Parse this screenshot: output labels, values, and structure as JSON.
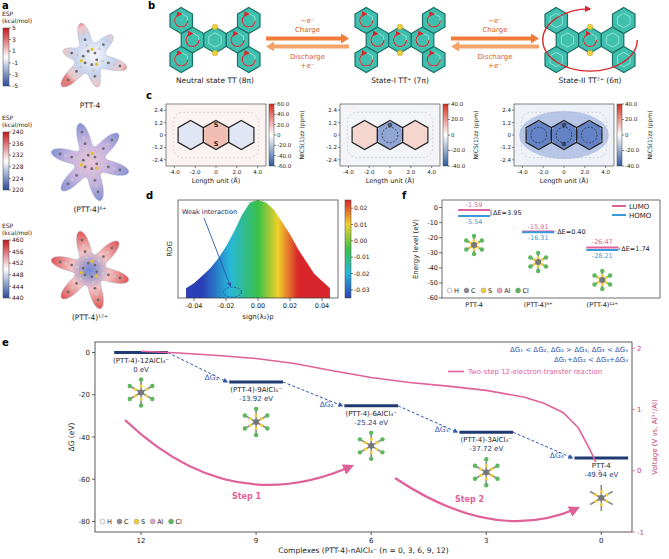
{
  "figure": {
    "panel_letters": [
      "a",
      "b",
      "c",
      "d",
      "e",
      "f"
    ],
    "atom_legend": [
      "H",
      "C",
      "S",
      "Al",
      "Cl"
    ],
    "panel_a": {
      "maps": [
        {
          "title": "ESP (kcal/mol)",
          "label": "PTT-4",
          "range": [
            -5,
            5
          ],
          "ticks": [
            5,
            3,
            1,
            -1,
            -3,
            -5
          ]
        },
        {
          "title": "ESP (kcal/mol)",
          "label": "(PTT-4)⁶⁺",
          "range": [
            220,
            240
          ],
          "ticks": [
            240,
            236,
            232,
            228,
            224,
            220
          ]
        },
        {
          "title": "ESP (kcal/mol)",
          "label": "(PTT-4)¹²⁺",
          "range": [
            440,
            460
          ],
          "ticks": [
            460,
            456,
            452,
            448,
            444,
            440
          ]
        }
      ]
    },
    "panel_b": {
      "states": [
        "Neutral state TT (8π)",
        "State-I TT⁺ (7π)",
        "State-II TT²⁺ (6π)"
      ],
      "arrows": [
        {
          "above": [
            "−e⁻",
            "Charge"
          ],
          "below": [
            "Discharge",
            "+e⁻"
          ]
        },
        {
          "above": [
            "−e⁻",
            "Charge"
          ],
          "below": [
            "Discharge",
            "+e⁻"
          ]
        }
      ]
    },
    "panel_c": {
      "x_label": "Length unit (Å)",
      "colorbar_title": "NICS(1)zz (ppm)",
      "xlim": [
        -4.8,
        4.8
      ],
      "ylim": [
        -3,
        3
      ],
      "xticks": [
        {
          "value": -4,
          "label": "-4.0"
        },
        {
          "value": -2,
          "label": "-2.0"
        },
        0,
        {
          "value": 2,
          "label": "2.0"
        },
        {
          "value": 4,
          "label": "4.0"
        }
      ],
      "yticks": [
        2.4,
        1.2,
        0,
        -1.2,
        -2.4
      ],
      "maps": [
        {
          "range": [
            -60,
            60
          ],
          "ticks": [
            {
              "value": 60,
              "label": "60.0"
            },
            {
              "value": 40,
              "label": "40.0"
            },
            {
              "value": 20,
              "label": "20.0"
            },
            0,
            {
              "value": -20,
              "label": "-20.0"
            },
            {
              "value": -40,
              "label": "-40.0"
            },
            {
              "value": -60,
              "label": "-60.0"
            }
          ],
          "atom_labels": [
            "S",
            "S"
          ]
        },
        {
          "range": [
            -40,
            40
          ],
          "ticks": [
            {
              "value": 40,
              "label": "40.0"
            },
            {
              "value": 20,
              "label": "20.0"
            },
            0,
            {
              "value": -20,
              "label": "-20.0"
            },
            {
              "value": -40,
              "label": "-40.0"
            }
          ],
          "atom_labels": [
            "⊕"
          ]
        },
        {
          "range": [
            -40,
            40
          ],
          "ticks": [
            {
              "value": 40,
              "label": "40.0"
            },
            {
              "value": 20,
              "label": "20.0"
            },
            0,
            {
              "value": -20,
              "label": "-20.0"
            },
            {
              "value": -40,
              "label": "-40.0"
            }
          ],
          "atom_labels": [
            "⊕",
            "⊕"
          ]
        }
      ]
    }
  },
  "chart_data": [
    {
      "type": "area",
      "x_label": "sign(λ₂)ρ",
      "y_label": "RDG",
      "x": [
        -0.045,
        -0.04,
        -0.035,
        -0.03,
        -0.025,
        -0.02,
        -0.015,
        -0.01,
        -0.005,
        0,
        0.005,
        0.01,
        0.015,
        0.02,
        0.025,
        0.03,
        0.035,
        0.04,
        0.045
      ],
      "values": [
        0.2,
        0.3,
        0.45,
        0.6,
        0.8,
        1.05,
        1.35,
        1.7,
        1.95,
        2.0,
        1.95,
        1.8,
        1.55,
        1.3,
        1.0,
        0.75,
        0.5,
        0.35,
        0.2
      ],
      "xlim": [
        -0.05,
        0.05
      ],
      "ylim": [
        0,
        2
      ],
      "xticks": [
        -0.04,
        -0.02,
        {
          "value": 0,
          "label": "0.00"
        },
        0.02,
        0.04
      ],
      "tick_labels": "x",
      "annotations": [
        "Weak interaction"
      ],
      "colorbar": {
        "range": [
          -0.035,
          0.025
        ],
        "ticks": [
          0.02,
          0.01,
          {
            "value": 0,
            "label": "0.00"
          },
          -0.01,
          -0.02,
          -0.03
        ]
      }
    },
    {
      "type": "line",
      "x_label": "Complexes (PTT-4)-nAlCl₄⁻ (n = 0, 3, 6, 9, 12)",
      "y_label": "ΔG (eV)",
      "y2_label": "Voltage (V vs. Al³⁺/Al)",
      "xlim": [
        13.2,
        -0.8
      ],
      "xticks": [
        12,
        9,
        6,
        3,
        0
      ],
      "ylim": [
        -85,
        5
      ],
      "yticks": [
        0,
        -20,
        -40,
        -60,
        -80
      ],
      "y2lim": [
        -1,
        2.1
      ],
      "y2ticks": [
        2,
        1,
        0,
        -1
      ],
      "data_labels": true,
      "legend": "upper right",
      "series": [
        {
          "type": "levels",
          "color": "#1f3a70",
          "x": [
            12,
            9,
            6,
            3,
            0
          ],
          "values": [
            0,
            -13.92,
            -25.24,
            -37.72,
            -49.94
          ],
          "value_labels": [
            "0 eV",
            "-13.92 eV",
            "-25.24 eV",
            "-37.72 eV",
            "-49.94 eV"
          ],
          "labels": [
            "(PTT-4)-12AlCl₄⁻",
            "(PTT-4)-9AlCl₄⁻",
            "(PTT-4)-6AlCl₄⁻",
            "(PTT-4)-3AlCl₄⁻",
            "PTT-4"
          ]
        },
        {
          "name": "Two-step 12-electron-transfer reaction",
          "type": "line",
          "axis": "y2",
          "color": "#e0609a",
          "x": [
            12,
            11,
            10,
            9,
            8,
            7,
            6,
            5,
            4,
            3,
            2,
            1.5,
            1,
            0.6,
            0.3,
            0
          ],
          "values": [
            1.95,
            1.92,
            1.88,
            1.83,
            1.75,
            1.63,
            1.52,
            1.44,
            1.38,
            1.31,
            1.2,
            1.1,
            0.95,
            0.7,
            0.35,
            -0.05
          ]
        }
      ],
      "annotations": {
        "delta_g": [
          "ΔG₁",
          "ΔG₂",
          "ΔG₃",
          "ΔG₄"
        ],
        "relations": [
          "ΔG₁ < ΔG₂, ΔG₂ > ΔG₃, ΔG₃ < ΔG₄",
          "ΔG₁+ΔG₂ < ΔG₃+ΔG₄"
        ],
        "steps": [
          "Step 1",
          "Step 2"
        ]
      }
    },
    {
      "type": "levels",
      "y_label": "Energy level (eV)",
      "categories": [
        "PTT-4",
        "(PTT-4)⁶⁺",
        "(PTT-4)¹²⁺"
      ],
      "ylim": [
        -60,
        5
      ],
      "yticks": [
        0,
        -10,
        -20,
        -30,
        -40,
        -50,
        -60
      ],
      "data_labels": true,
      "legend": "upper right",
      "series": [
        {
          "name": "LUMO",
          "color": "#e0609a",
          "values": [
            -1.59,
            -15.91,
            -26.47
          ]
        },
        {
          "name": "HOMO",
          "color": "#3a9ad9",
          "values": [
            -5.54,
            -16.31,
            -28.21
          ]
        }
      ],
      "gaps": {
        "values": [
          3.95,
          0.4,
          1.74
        ],
        "value_labels": [
          "ΔE=3.95",
          "ΔE=0.40",
          "ΔE=1.74"
        ]
      }
    }
  ]
}
